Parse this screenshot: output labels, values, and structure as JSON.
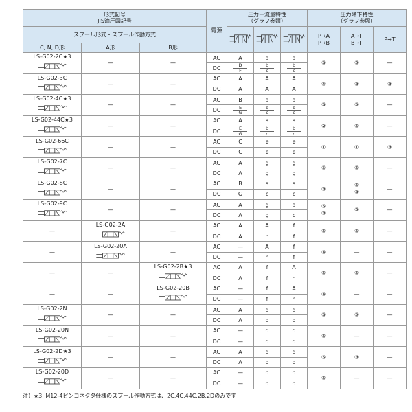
{
  "header": {
    "model_label": "形式記号",
    "jis_label": "JIS油圧図記号",
    "spool_label": "スプール形式・スプール作動方式",
    "types": [
      "C, N, D形",
      "A形",
      "B形"
    ],
    "power": "電源",
    "flow_title": "圧力ー流量特性",
    "flow_sub": "（グラフ参照）",
    "drop_title": "圧力降下特性",
    "drop_sub": "（グラフ参照）",
    "drop_cols": [
      [
        "P→A",
        "P→B"
      ],
      [
        "A→T",
        "B→T"
      ],
      [
        "P→T"
      ]
    ]
  },
  "rows": [
    {
      "models": [
        "LS-G02-2C★3",
        "—",
        "—"
      ],
      "ac": [
        "AC",
        "A",
        "a",
        "a"
      ],
      "dc": [
        "DC",
        [
          "D",
          "F"
        ],
        [
          "b",
          "c"
        ],
        [
          "b",
          "c"
        ]
      ],
      "drop": [
        "③",
        "⑤",
        "—"
      ]
    },
    {
      "models": [
        "LS-G02-3C",
        "—",
        "—"
      ],
      "ac": [
        "AC",
        "A",
        "A",
        "A"
      ],
      "dc": [
        "DC",
        "A",
        "A",
        "A"
      ],
      "drop": [
        "④",
        "③",
        "③"
      ]
    },
    {
      "models": [
        "LS-G02-4C★3",
        "—",
        "—"
      ],
      "ac": [
        "AC",
        "B",
        "a",
        "a"
      ],
      "dc": [
        "DC",
        [
          "E",
          "G"
        ],
        [
          "b",
          "c"
        ],
        [
          "b",
          "c"
        ]
      ],
      "drop": [
        "③",
        "⑥",
        "—"
      ]
    },
    {
      "models": [
        "LS-G02-44C★3",
        "—",
        "—"
      ],
      "ac": [
        "AC",
        "A",
        "a",
        "a"
      ],
      "dc": [
        "DC",
        [
          "E",
          "G"
        ],
        [
          "b",
          "c"
        ],
        [
          "b",
          "c"
        ]
      ],
      "drop": [
        "②",
        "⑤",
        "—"
      ]
    },
    {
      "models": [
        "LS-G02-66C",
        "—",
        "—"
      ],
      "ac": [
        "AC",
        "C",
        "e",
        "e"
      ],
      "dc": [
        "DC",
        "C",
        "e",
        "e"
      ],
      "drop": [
        "①",
        "①",
        "③"
      ]
    },
    {
      "models": [
        "LS-G02-7C",
        "—",
        "—"
      ],
      "ac": [
        "AC",
        "A",
        "g",
        "g"
      ],
      "dc": [
        "DC",
        "A",
        "g",
        "g"
      ],
      "drop": [
        "⑥",
        "⑤",
        "—"
      ]
    },
    {
      "models": [
        "LS-G02-8C",
        "—",
        "—"
      ],
      "ac": [
        "AC",
        "B",
        "a",
        "a"
      ],
      "dc": [
        "DC",
        "G",
        "c",
        "c"
      ],
      "drop": [
        "③",
        [
          "⑤",
          "③"
        ],
        "—"
      ]
    },
    {
      "models": [
        "LS-G02-9C",
        "—",
        "—"
      ],
      "ac": [
        "AC",
        "A",
        "g",
        "a"
      ],
      "dc": [
        "DC",
        "A",
        "g",
        "c"
      ],
      "drop": [
        [
          "⑤",
          "③"
        ],
        "⑤",
        "—"
      ]
    },
    {
      "models": [
        "—",
        "LS-G02-2A",
        "—"
      ],
      "ac": [
        "AC",
        "A",
        "A",
        "f"
      ],
      "dc": [
        "DC",
        "A",
        "h",
        "f"
      ],
      "drop": [
        "⑤",
        "⑤",
        "—"
      ]
    },
    {
      "models": [
        "—",
        "LS-G02-20A",
        "—"
      ],
      "ac": [
        "AC",
        "—",
        "A",
        "f"
      ],
      "dc": [
        "DC",
        "—",
        "h",
        "f"
      ],
      "drop": [
        "④",
        "—",
        "—"
      ]
    },
    {
      "models": [
        "—",
        "—",
        "LS-G02-2B★3"
      ],
      "ac": [
        "AC",
        "A",
        "f",
        "A"
      ],
      "dc": [
        "DC",
        "A",
        "f",
        "h"
      ],
      "drop": [
        "⑤",
        "⑤",
        "—"
      ]
    },
    {
      "models": [
        "—",
        "—",
        "LS-G02-20B"
      ],
      "ac": [
        "AC",
        "—",
        "f",
        "A"
      ],
      "dc": [
        "DC",
        "—",
        "f",
        "h"
      ],
      "drop": [
        "④",
        "—",
        "—"
      ]
    },
    {
      "models": [
        "LS-G02-2N",
        "—",
        "—"
      ],
      "ac": [
        "AC",
        "A",
        "d",
        "d"
      ],
      "dc": [
        "DC",
        "A",
        "d",
        "d"
      ],
      "drop": [
        "③",
        "⑥",
        "—"
      ]
    },
    {
      "models": [
        "LS-G02-20N",
        "—",
        "—"
      ],
      "ac": [
        "AC",
        "—",
        "d",
        "d"
      ],
      "dc": [
        "DC",
        "—",
        "d",
        "d"
      ],
      "drop": [
        "⑤",
        "—",
        "—"
      ]
    },
    {
      "models": [
        "LS-G02-2D★3",
        "—",
        "—"
      ],
      "ac": [
        "AC",
        "A",
        "d",
        "d"
      ],
      "dc": [
        "DC",
        "A",
        "d",
        "d"
      ],
      "drop": [
        "⑤",
        "③",
        "—"
      ]
    },
    {
      "models": [
        "LS-G02-20D",
        "—",
        "—"
      ],
      "ac": [
        "AC",
        "—",
        "d",
        "d"
      ],
      "dc": [
        "DC",
        "—",
        "d",
        "d"
      ],
      "drop": [
        "⑤",
        "—",
        "—"
      ]
    }
  ],
  "footnote": "注）★3. M12-4ピンコネクタ仕様のスプール作動方式は、2C,4C,44C,2B,2Dのみです"
}
